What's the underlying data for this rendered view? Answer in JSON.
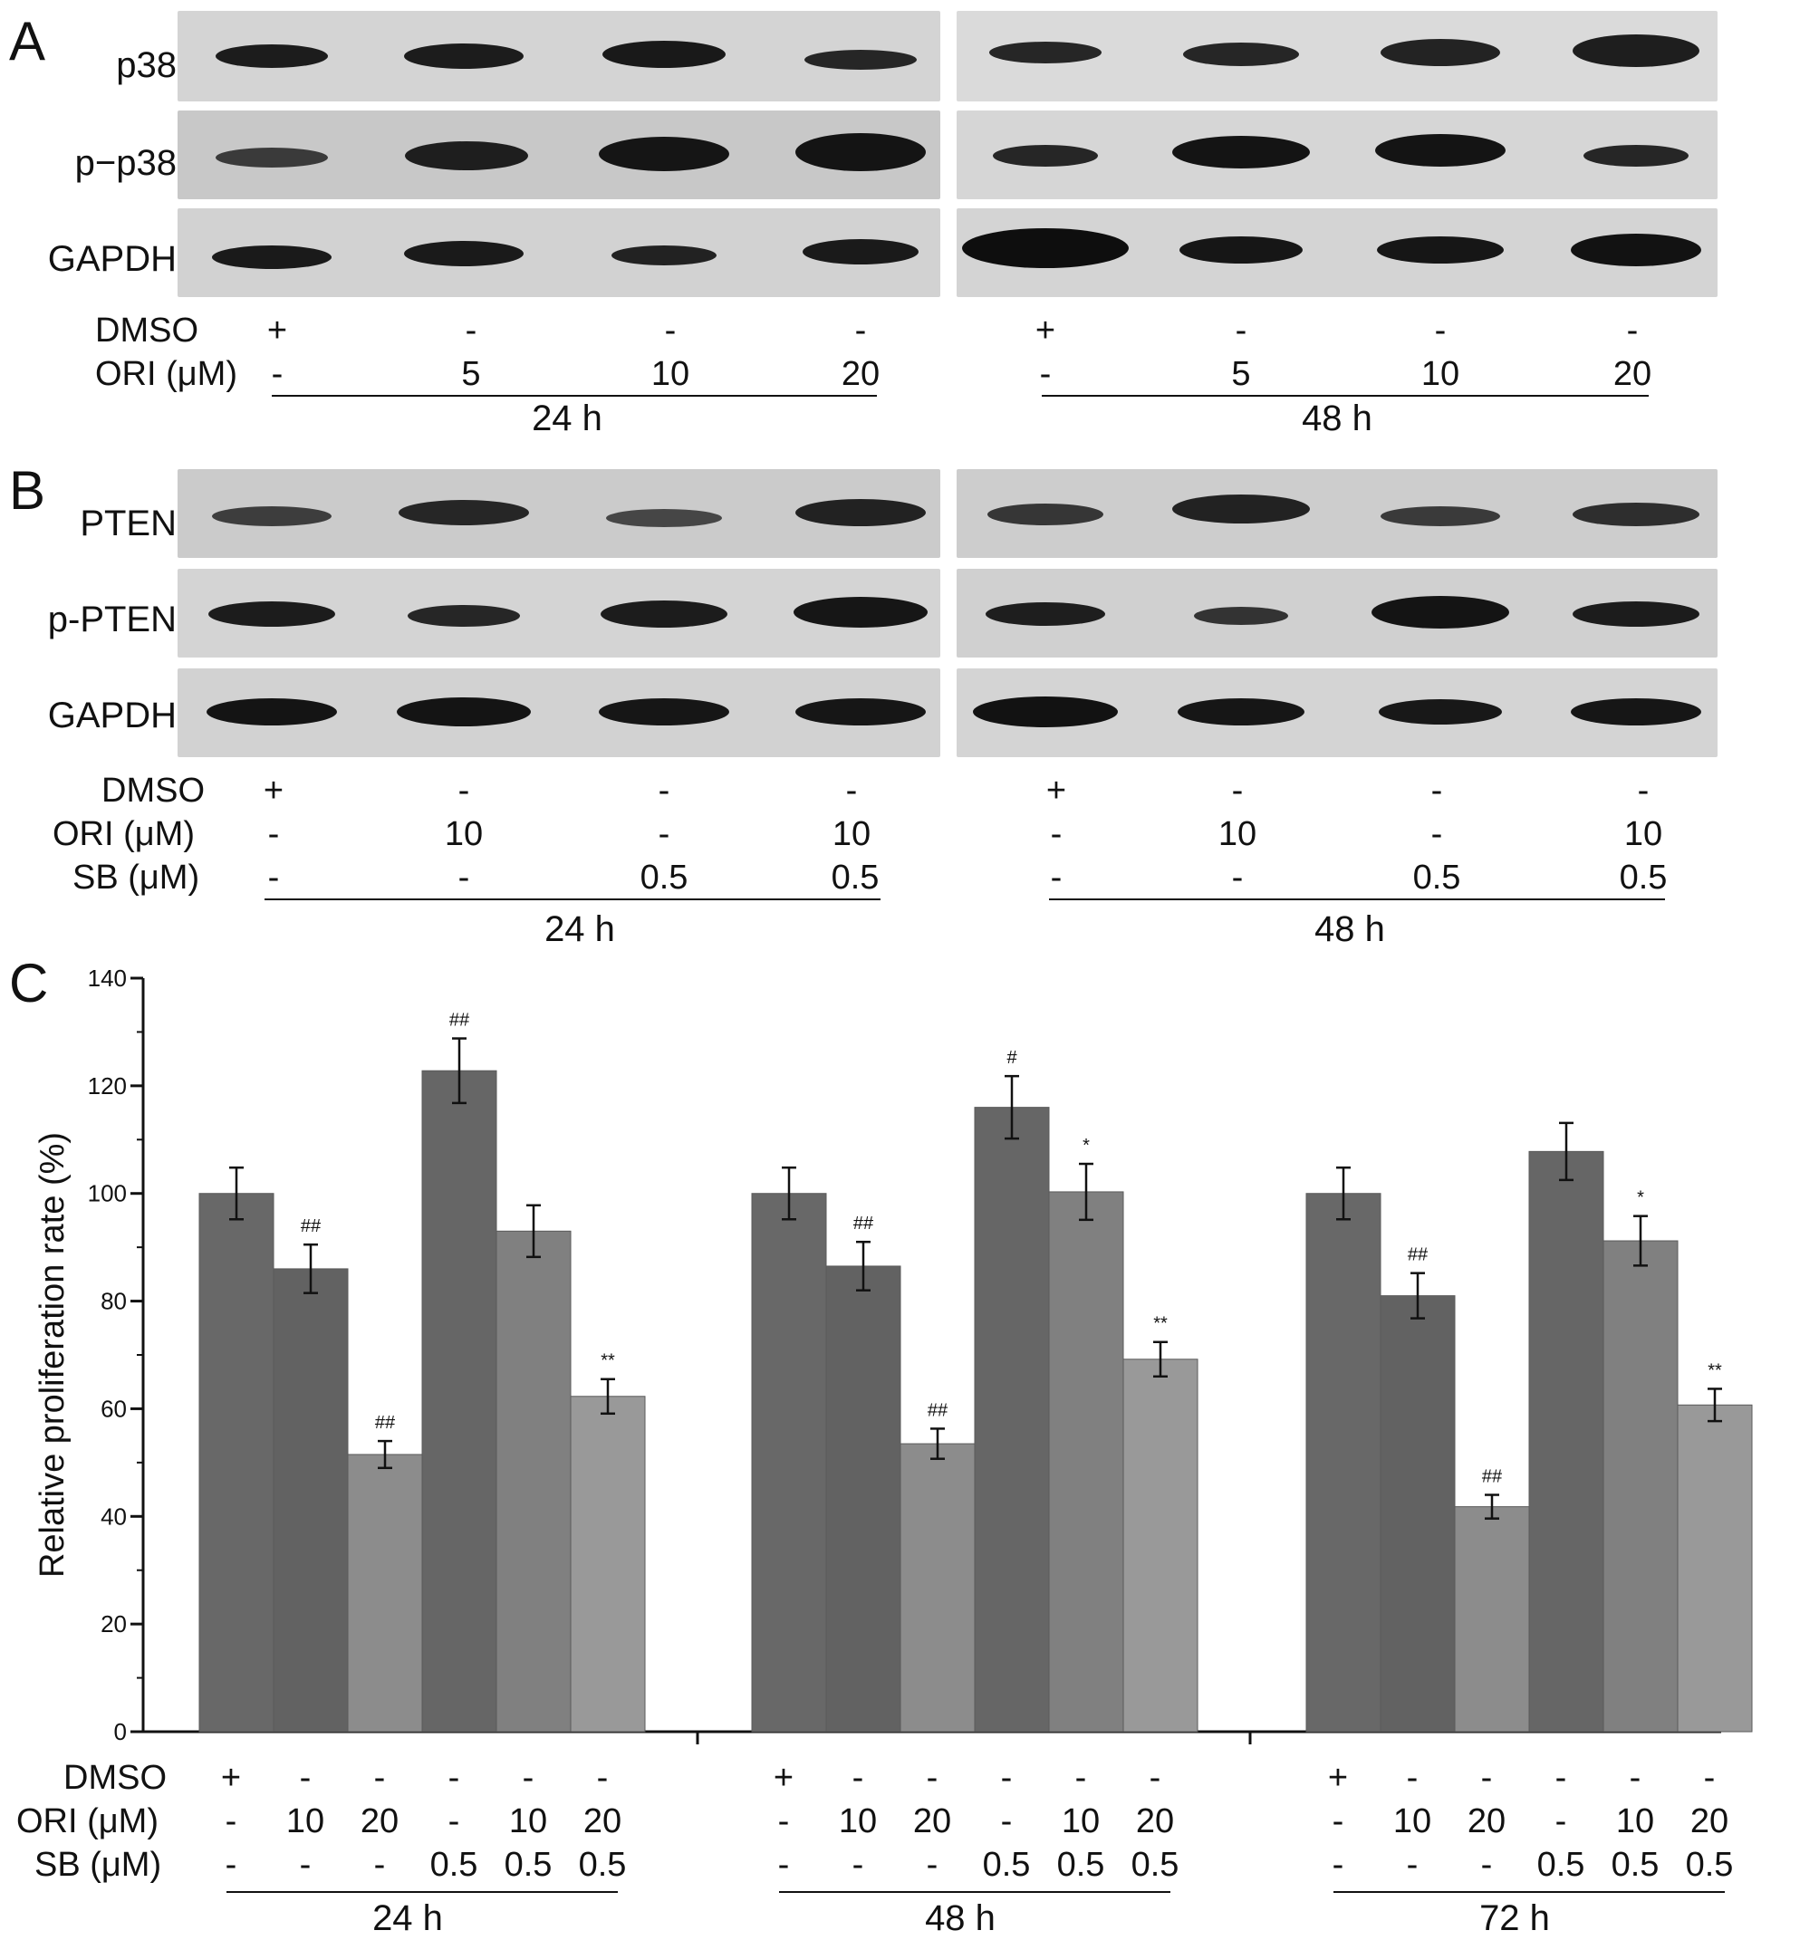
{
  "panels": {
    "a": {
      "letter": "A",
      "blots": [
        "p38",
        "p−p38",
        "GAPDH"
      ],
      "rows": [
        {
          "label": "DMSO",
          "left": [
            "+",
            "-",
            "-",
            "-"
          ],
          "right": [
            "+",
            "-",
            "-",
            "-"
          ]
        },
        {
          "label": "ORI (μM)",
          "left": [
            "-",
            "5",
            "10",
            "20"
          ],
          "right": [
            "-",
            "5",
            "10",
            "20"
          ]
        }
      ],
      "groups": [
        "24 h",
        "48 h"
      ]
    },
    "b": {
      "letter": "B",
      "blots": [
        "PTEN",
        "p-PTEN",
        "GAPDH"
      ],
      "rows": [
        {
          "label": "DMSO",
          "left": [
            "+",
            "-",
            "-",
            "-"
          ],
          "right": [
            "+",
            "-",
            "-",
            "-"
          ]
        },
        {
          "label": "ORI (μM)",
          "left": [
            "-",
            "10",
            "-",
            "10"
          ],
          "right": [
            "-",
            "10",
            "-",
            "10"
          ]
        },
        {
          "label": "SB (μM)",
          "left": [
            "-",
            "-",
            "0.5",
            "0.5"
          ],
          "right": [
            "-",
            "-",
            "0.5",
            "0.5"
          ]
        }
      ],
      "groups": [
        "24 h",
        "48 h"
      ]
    },
    "c": {
      "letter": "C",
      "rows": [
        {
          "label": "DMSO",
          "values": [
            "+",
            "-",
            "-",
            "-",
            "-",
            "-"
          ]
        },
        {
          "label": "ORI (μM)",
          "values": [
            "-",
            "10",
            "20",
            "-",
            "10",
            "20"
          ]
        },
        {
          "label": "SB (μM)",
          "values": [
            "-",
            "-",
            "-",
            "0.5",
            "0.5",
            "0.5"
          ]
        }
      ]
    }
  },
  "chart_data": {
    "type": "bar",
    "title": "",
    "xlabel": "",
    "ylabel": "Relative proliferation rate (%)",
    "ylim": [
      0,
      140
    ],
    "yticks": [
      0,
      20,
      40,
      60,
      80,
      100,
      120,
      140
    ],
    "grid": false,
    "categories": [
      "24 h",
      "48 h",
      "72 h"
    ],
    "series": [
      {
        "values": [
          100,
          100,
          100
        ],
        "errors": [
          4.8,
          4.8,
          4.8
        ],
        "annotations": [
          "",
          "",
          ""
        ],
        "color": "#686868"
      },
      {
        "values": [
          86,
          86.5,
          81
        ],
        "errors": [
          4.5,
          4.5,
          4.2
        ],
        "annotations": [
          "##",
          "##",
          "##"
        ],
        "color": "#626262"
      },
      {
        "values": [
          51.5,
          53.5,
          41.8
        ],
        "errors": [
          2.5,
          2.8,
          2.2
        ],
        "annotations": [
          "##",
          "##",
          "##"
        ],
        "color": "#8c8c8c"
      },
      {
        "values": [
          122.8,
          116,
          107.8
        ],
        "errors": [
          6,
          5.8,
          5.3
        ],
        "annotations": [
          "##",
          "#",
          ""
        ],
        "color": "#666666"
      },
      {
        "values": [
          93,
          100.3,
          91.2
        ],
        "errors": [
          4.8,
          5.2,
          4.6
        ],
        "annotations": [
          "",
          "*",
          "*"
        ],
        "color": "#808080"
      },
      {
        "values": [
          62.3,
          69.2,
          60.7
        ],
        "errors": [
          3.2,
          3.2,
          3
        ],
        "annotations": [
          "**",
          "**",
          "**"
        ],
        "color": "#999999"
      }
    ]
  }
}
